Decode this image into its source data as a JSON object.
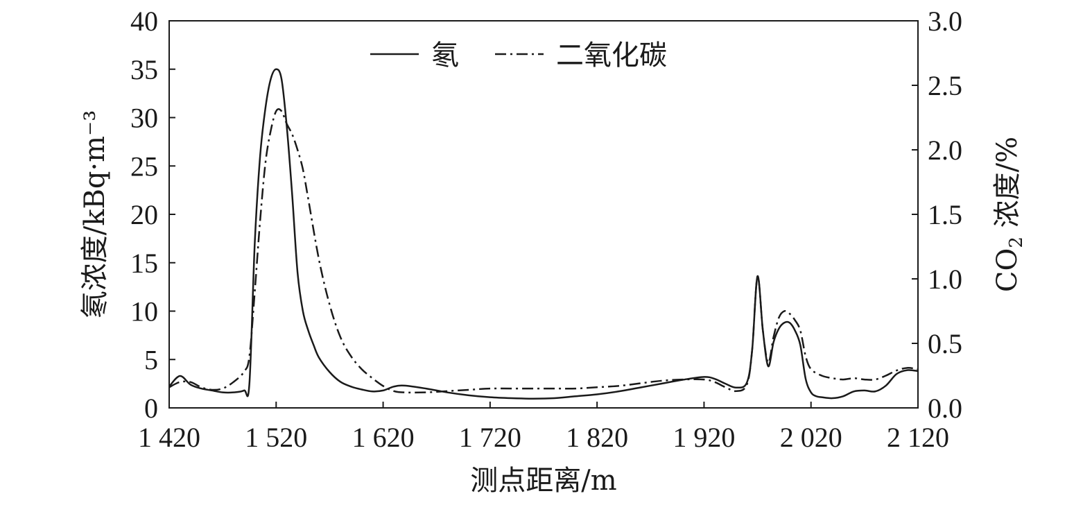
{
  "chart_data": {
    "type": "line",
    "title": "",
    "xlabel": "测点距离/m",
    "ylabel_left": "氡浓度/kBq·m⁻³",
    "ylabel_right_prefix": "CO",
    "ylabel_right_sub": "2",
    "ylabel_right_suffix": " 浓度/%",
    "xlim": [
      1420,
      2120
    ],
    "ylim_left": [
      0,
      40
    ],
    "ylim_right": [
      0,
      3.0
    ],
    "x_ticks": [
      1420,
      1520,
      1620,
      1720,
      1820,
      1920,
      2020,
      2120
    ],
    "x_tick_labels": [
      "1 420",
      "1 520",
      "1 620",
      "1 720",
      "1 820",
      "1 920",
      "2 020",
      "2 120"
    ],
    "y_left_ticks": [
      0,
      5,
      10,
      15,
      20,
      25,
      30,
      35,
      40
    ],
    "y_left_tick_labels": [
      "0",
      "5",
      "10",
      "15",
      "20",
      "25",
      "30",
      "35",
      "40"
    ],
    "y_right_ticks": [
      0,
      0.5,
      1.0,
      1.5,
      2.0,
      2.5,
      3.0
    ],
    "y_right_tick_labels": [
      "0.0",
      "0.5",
      "1.0",
      "1.5",
      "2.0",
      "2.5",
      "3.0"
    ],
    "grid": false,
    "legend_position": "top-center",
    "series": [
      {
        "name": "氡",
        "axis": "left",
        "style": "solid",
        "color": "#1a1a1a",
        "x": [
          1420,
          1430,
          1440,
          1450,
          1460,
          1470,
          1480,
          1490,
          1495,
          1500,
          1505,
          1510,
          1515,
          1520,
          1525,
          1530,
          1535,
          1540,
          1545,
          1550,
          1555,
          1560,
          1570,
          1580,
          1590,
          1600,
          1610,
          1620,
          1630,
          1640,
          1660,
          1680,
          1700,
          1720,
          1740,
          1760,
          1780,
          1800,
          1820,
          1840,
          1860,
          1880,
          1900,
          1920,
          1930,
          1940,
          1950,
          1960,
          1965,
          1970,
          1975,
          1980,
          1985,
          1990,
          1995,
          2000,
          2005,
          2010,
          2015,
          2020,
          2025,
          2030,
          2040,
          2050,
          2060,
          2070,
          2080,
          2090,
          2100,
          2110,
          2120
        ],
        "values": [
          2.2,
          3.3,
          2.4,
          2.0,
          1.8,
          1.6,
          1.6,
          1.8,
          2.5,
          17,
          26,
          31,
          34,
          35,
          34,
          29,
          22,
          14,
          10,
          8,
          6.5,
          5.2,
          3.7,
          2.7,
          2.2,
          1.9,
          1.7,
          1.8,
          2.2,
          2.3,
          2.0,
          1.6,
          1.3,
          1.1,
          1.0,
          0.95,
          1.0,
          1.2,
          1.4,
          1.7,
          2.1,
          2.5,
          2.9,
          3.2,
          3.0,
          2.5,
          2.1,
          2.6,
          6.0,
          13.6,
          8.0,
          4.3,
          6.8,
          8.2,
          8.8,
          8.8,
          8.0,
          6.5,
          3.0,
          1.6,
          1.2,
          1.1,
          1.0,
          1.2,
          1.7,
          1.8,
          1.7,
          2.3,
          3.5,
          3.9,
          3.8
        ]
      },
      {
        "name": "二氧化碳",
        "axis": "right",
        "style": "dash-dot",
        "color": "#1a1a1a",
        "x": [
          1420,
          1430,
          1440,
          1450,
          1460,
          1470,
          1480,
          1490,
          1495,
          1500,
          1505,
          1510,
          1515,
          1520,
          1525,
          1530,
          1535,
          1540,
          1545,
          1550,
          1560,
          1570,
          1580,
          1590,
          1600,
          1610,
          1620,
          1630,
          1640,
          1660,
          1680,
          1700,
          1720,
          1740,
          1760,
          1780,
          1800,
          1820,
          1840,
          1860,
          1880,
          1900,
          1920,
          1930,
          1940,
          1950,
          1960,
          1965,
          1970,
          1975,
          1980,
          1985,
          1990,
          1995,
          2000,
          2005,
          2010,
          2015,
          2020,
          2030,
          2040,
          2050,
          2060,
          2070,
          2080,
          2090,
          2100,
          2110,
          2120
        ],
        "values": [
          0.16,
          0.2,
          0.2,
          0.16,
          0.14,
          0.15,
          0.2,
          0.28,
          0.4,
          0.9,
          1.45,
          1.9,
          2.15,
          2.3,
          2.3,
          2.2,
          2.12,
          2.0,
          1.85,
          1.62,
          1.15,
          0.8,
          0.55,
          0.4,
          0.3,
          0.23,
          0.17,
          0.13,
          0.12,
          0.12,
          0.13,
          0.14,
          0.15,
          0.15,
          0.15,
          0.15,
          0.15,
          0.16,
          0.17,
          0.19,
          0.21,
          0.22,
          0.22,
          0.2,
          0.16,
          0.13,
          0.18,
          0.45,
          1.02,
          0.6,
          0.35,
          0.55,
          0.7,
          0.75,
          0.73,
          0.68,
          0.6,
          0.4,
          0.3,
          0.25,
          0.23,
          0.22,
          0.23,
          0.22,
          0.22,
          0.25,
          0.29,
          0.31,
          0.3
        ]
      }
    ]
  }
}
